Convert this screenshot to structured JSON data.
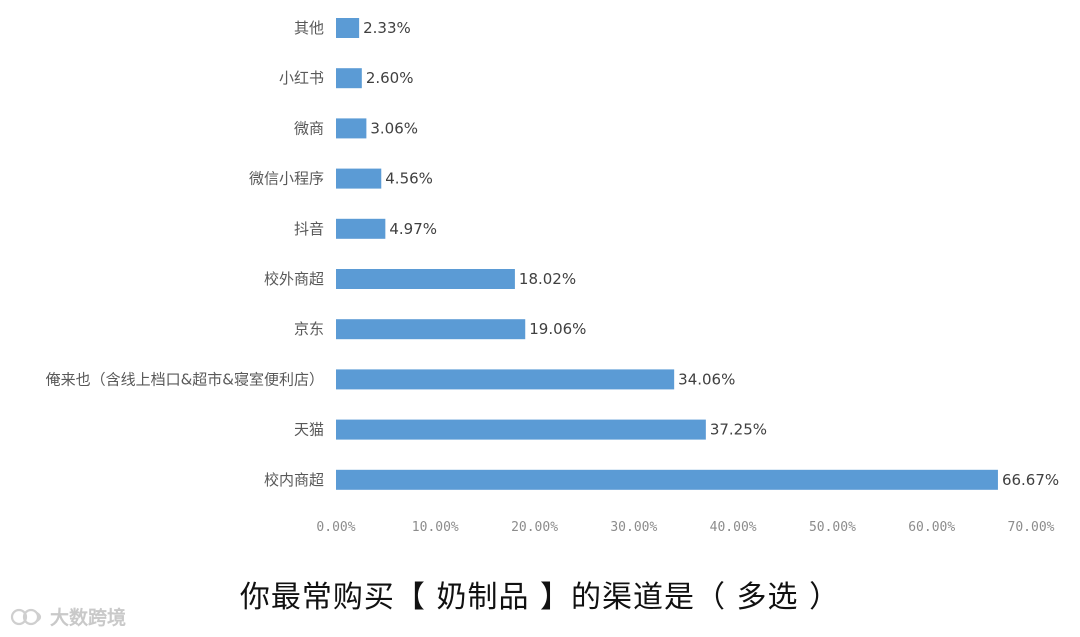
{
  "chart_data": {
    "type": "bar",
    "orientation": "horizontal",
    "title": "你最常购买【 奶制品 】的渠道是（ 多选 ）",
    "categories": [
      "其他",
      "小红书",
      "微商",
      "微信小程序",
      "抖音",
      "校外商超",
      "京东",
      "俺来也（含线上档口&超市&寝室便利店）",
      "天猫",
      "校内商超"
    ],
    "values": [
      2.33,
      2.6,
      3.06,
      4.56,
      4.97,
      18.02,
      19.06,
      34.06,
      37.25,
      66.67
    ],
    "value_labels": [
      "2.33%",
      "2.60%",
      "3.06%",
      "4.56%",
      "4.97%",
      "18.02%",
      "19.06%",
      "34.06%",
      "37.25%",
      "66.67%"
    ],
    "xlim": [
      0,
      70
    ],
    "x_ticks": [
      "0.00%",
      "10.00%",
      "20.00%",
      "30.00%",
      "40.00%",
      "50.00%",
      "60.00%",
      "70.00%"
    ],
    "grid": false,
    "legend": "none",
    "bar_color": "#5b9bd5"
  },
  "caption": "你最常购买【 奶制品 】的渠道是（ 多选 ）",
  "watermark": "大数跨境"
}
